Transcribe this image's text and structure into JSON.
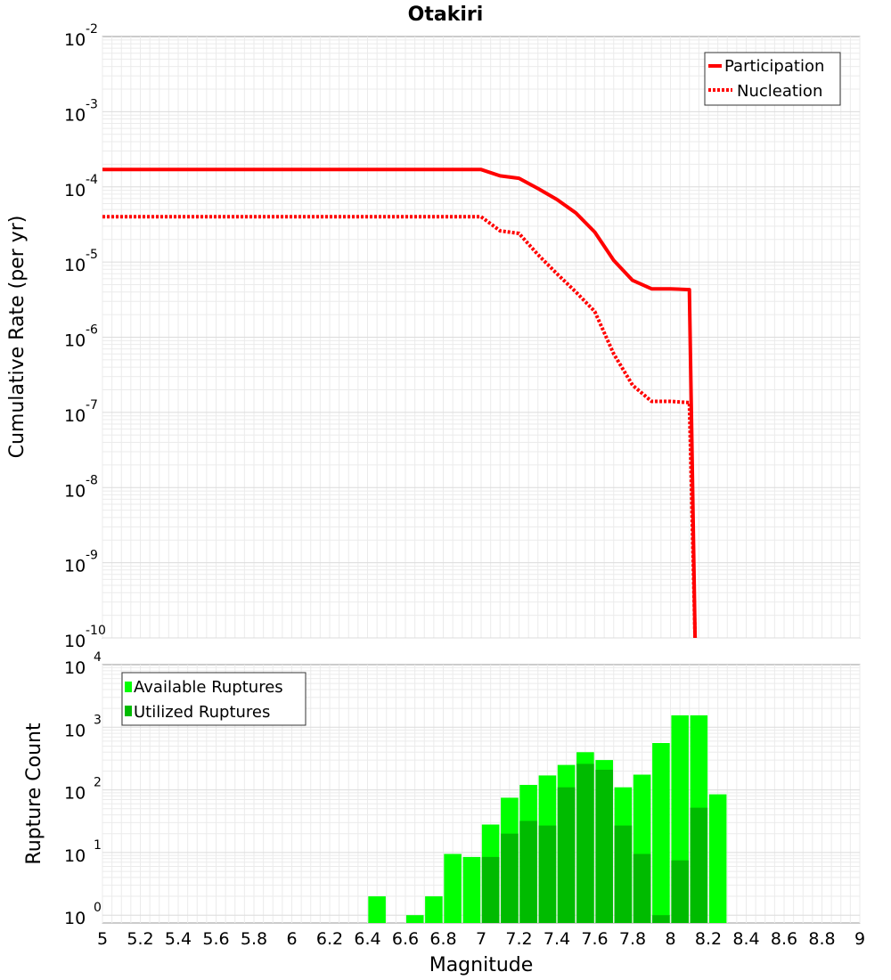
{
  "chart_data": [
    {
      "type": "line",
      "title": "Otakiri",
      "xlabel": "",
      "ylabel": "Cumulative Rate (per yr)",
      "yscale": "log",
      "xlim": [
        5,
        9
      ],
      "ylim": [
        1e-10,
        0.01
      ],
      "y_tick_labels": [
        {
          "base": "10",
          "exp": "-2"
        },
        {
          "base": "10",
          "exp": "-3"
        },
        {
          "base": "10",
          "exp": "-4"
        },
        {
          "base": "10",
          "exp": "-5"
        },
        {
          "base": "10",
          "exp": "-6"
        },
        {
          "base": "10",
          "exp": "-7"
        },
        {
          "base": "10",
          "exp": "-8"
        },
        {
          "base": "10",
          "exp": "-9"
        },
        {
          "base": "10",
          "exp": "-10"
        }
      ],
      "legend": "top-right",
      "series": [
        {
          "name": "Participation",
          "color": "#ff0000",
          "style": "solid",
          "x": [
            5.0,
            7.0,
            7.1,
            7.2,
            7.3,
            7.4,
            7.5,
            7.6,
            7.7,
            7.8,
            7.9,
            8.0,
            8.1,
            8.13
          ],
          "y": [
            0.00017,
            0.00017,
            0.00014,
            0.00013,
            9.5e-05,
            6.8e-05,
            4.5e-05,
            2.5e-05,
            1.05e-05,
            5.7e-06,
            4.4e-06,
            4.4e-06,
            4.3e-06,
            1e-10
          ]
        },
        {
          "name": "Nucleation",
          "color": "#ff0000",
          "style": "dotted",
          "x": [
            5.0,
            7.0,
            7.1,
            7.2,
            7.3,
            7.4,
            7.5,
            7.6,
            7.7,
            7.8,
            7.9,
            8.0,
            8.1,
            8.13
          ],
          "y": [
            4e-05,
            4e-05,
            2.6e-05,
            2.4e-05,
            1.25e-05,
            7e-06,
            4e-06,
            2.2e-06,
            6e-07,
            2.3e-07,
            1.4e-07,
            1.4e-07,
            1.35e-07,
            1e-10
          ]
        }
      ]
    },
    {
      "type": "bar",
      "title": "",
      "xlabel": "Magnitude",
      "ylabel": "Rupture Count",
      "yscale": "log",
      "xlim": [
        5,
        9
      ],
      "ylim": [
        0.75,
        10000
      ],
      "x_tick_labels": [
        "5",
        "5.2",
        "5.4",
        "5.6",
        "5.8",
        "6",
        "6.2",
        "6.4",
        "6.6",
        "6.8",
        "7",
        "7.2",
        "7.4",
        "7.6",
        "7.8",
        "8",
        "8.2",
        "8.4",
        "8.6",
        "8.8",
        "9"
      ],
      "y_tick_labels": [
        {
          "base": "10",
          "exp": "4"
        },
        {
          "base": "10",
          "exp": "3"
        },
        {
          "base": "10",
          "exp": "2"
        },
        {
          "base": "10",
          "exp": "1"
        },
        {
          "base": "10",
          "exp": "0"
        }
      ],
      "legend": "top-left",
      "series": [
        {
          "name": "Available Ruptures",
          "color": "#00ff00",
          "x": [
            6.45,
            6.55,
            6.65,
            6.75,
            6.85,
            6.95,
            7.05,
            7.15,
            7.25,
            7.35,
            7.45,
            7.55,
            7.65,
            7.75,
            7.85,
            7.95,
            8.05,
            8.15,
            8.25
          ],
          "values": [
            2,
            0,
            1,
            2,
            9.5,
            8.5,
            28,
            75,
            120,
            170,
            250,
            400,
            300,
            110,
            175,
            560,
            1550,
            1550,
            85
          ]
        },
        {
          "name": "Utilized Ruptures",
          "color": "#00bb00",
          "x": [
            6.45,
            6.55,
            6.65,
            6.75,
            6.85,
            6.95,
            7.05,
            7.15,
            7.25,
            7.35,
            7.45,
            7.55,
            7.65,
            7.75,
            7.85,
            7.95,
            8.05,
            8.15,
            8.25
          ],
          "values": [
            0,
            0,
            0,
            0,
            0,
            0,
            8.5,
            20,
            32,
            27,
            110,
            260,
            210,
            27,
            9.5,
            1.0,
            7.5,
            52,
            0
          ]
        }
      ]
    }
  ]
}
